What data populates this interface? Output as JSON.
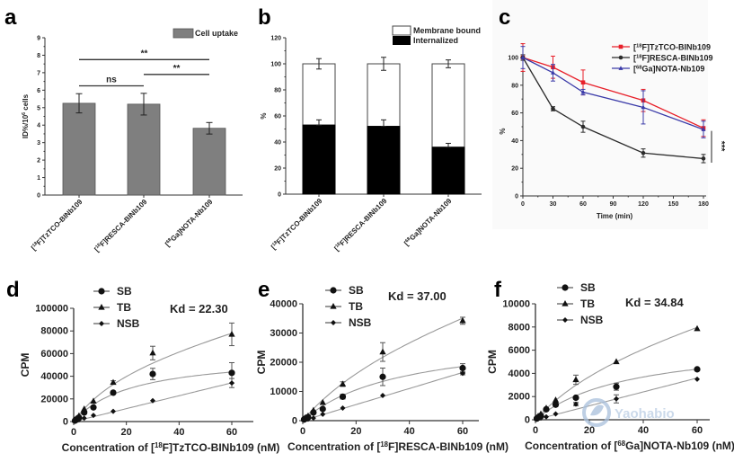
{
  "chart_data": [
    {
      "panel": "a",
      "type": "bar",
      "categories": [
        "[18F]TzTCO-BINb109",
        "[18F]RESCA-BINb109",
        "[68Ga]NOTA-Nb109"
      ],
      "category_labels": [
        {
          "sup": "18",
          "pre": "[",
          "post": "F]TzTCO-BINb109"
        },
        {
          "sup": "18",
          "pre": "[",
          "post": "F]RESCA-BINb109"
        },
        {
          "sup": "68",
          "pre": "[",
          "post": "Ga]NOTA-Nb109"
        }
      ],
      "series": [
        {
          "name": "Cell uptake",
          "values": [
            5.25,
            5.2,
            3.82
          ],
          "errors": [
            0.55,
            0.62,
            0.33
          ],
          "color": "#7f7f7f"
        }
      ],
      "ylabel": "ID%/10",
      "ylabel_sup": "6",
      "ylabel_post": " cells",
      "ylim": [
        0,
        9
      ],
      "yticks": [
        0,
        1,
        2,
        3,
        4,
        5,
        6,
        7,
        8,
        9
      ],
      "legend": "top-right",
      "significance": [
        {
          "from": 0,
          "to": 1,
          "label": "ns",
          "level": 6.25
        },
        {
          "from": 1,
          "to": 2,
          "label": "**",
          "level": 6.9
        },
        {
          "from": 0,
          "to": 2,
          "label": "**",
          "level": 7.75
        }
      ]
    },
    {
      "panel": "b",
      "type": "bar",
      "stacked": true,
      "categories": [
        "[18F]TzTCO-BINb109",
        "[18F]RESCA-BINb109",
        "[68Ga]NOTA-Nb109"
      ],
      "series": [
        {
          "name": "Internalized",
          "values": [
            53,
            52,
            36
          ],
          "errors": [
            4,
            5,
            3
          ],
          "color": "#000000"
        },
        {
          "name": "Membrane bound",
          "values": [
            47,
            48,
            64
          ],
          "errors": [
            4,
            5,
            3
          ],
          "color": "#ffffff"
        }
      ],
      "ylabel": "%",
      "ylim": [
        0,
        120
      ],
      "yticks": [
        0,
        20,
        40,
        60,
        80,
        100,
        120
      ],
      "legend": "top-right"
    },
    {
      "panel": "c",
      "type": "line",
      "x": [
        0,
        30,
        60,
        120,
        180
      ],
      "series": [
        {
          "name": "[18F]TzTCO-BINb109",
          "sup": "18",
          "post": "F]TzTCO-BINb109",
          "values": [
            100,
            93,
            82,
            69,
            49
          ],
          "errors": [
            10,
            8,
            9,
            8,
            6
          ],
          "color": "#e8202a",
          "marker": "square"
        },
        {
          "name": "[18F]RESCA-BINb109",
          "sup": "18",
          "post": "F]RESCA-BINb109",
          "values": [
            100,
            63,
            50,
            31,
            27
          ],
          "errors": [
            2,
            1.5,
            4,
            3,
            3
          ],
          "color": "#2b2b2b",
          "marker": "circle"
        },
        {
          "name": "[68Ga]NOTA-Nb109",
          "sup": "68",
          "post": "Ga]NOTA-Nb109",
          "values": [
            100,
            89,
            75,
            64,
            48
          ],
          "errors": [
            8,
            6,
            2,
            12,
            6
          ],
          "color": "#3a3aa8",
          "marker": "triangle"
        }
      ],
      "xlabel": "Time (min)",
      "ylabel": "%",
      "xlim": [
        0,
        180
      ],
      "ylim": [
        0,
        110
      ],
      "xticks": [
        0,
        30,
        60,
        90,
        120,
        150,
        180
      ],
      "yticks": [
        0,
        20,
        40,
        60,
        80,
        100
      ],
      "legend": "top-right",
      "annotation": "***"
    },
    {
      "panel": "d",
      "type": "scatter",
      "x": [
        0.5,
        1,
        2,
        4,
        7.5,
        15,
        30,
        60
      ],
      "series": [
        {
          "name": "SB",
          "marker": "circle",
          "values": [
            800,
            1800,
            3500,
            8000,
            12500,
            25500,
            42000,
            43000
          ],
          "errors": [
            0,
            0,
            0,
            0,
            0,
            1500,
            5000,
            9000
          ]
        },
        {
          "name": "TB",
          "marker": "triangle",
          "values": [
            1200,
            2500,
            5000,
            11000,
            18000,
            34500,
            60500,
            77000
          ],
          "errors": [
            0,
            0,
            0,
            0,
            0,
            1500,
            6000,
            10000
          ]
        },
        {
          "name": "NSB",
          "marker": "diamond",
          "values": [
            300,
            700,
            1500,
            3000,
            5500,
            9000,
            18500,
            34000
          ],
          "errors": [
            0,
            0,
            0,
            0,
            0,
            0,
            0,
            4000
          ]
        }
      ],
      "fit": {
        "SB_Bmax": 60000,
        "Kd": 22.3,
        "NSB_slope": 570
      },
      "kd_label": "Kd = 22.30",
      "xlabel_pre": "Concentration of [",
      "xlabel_sup": "18",
      "xlabel_post": "F]TzTCO-BINb109 (nM)",
      "ylabel": "CPM",
      "xlim": [
        0,
        65
      ],
      "ylim": [
        0,
        100000
      ],
      "xticks": [
        0,
        20,
        40,
        60
      ],
      "yticks": [
        0,
        20000,
        40000,
        60000,
        80000,
        100000
      ],
      "legend": "top-left"
    },
    {
      "panel": "e",
      "type": "scatter",
      "x": [
        0.5,
        1,
        2,
        4,
        7.5,
        15,
        30,
        60
      ],
      "series": [
        {
          "name": "SB",
          "marker": "circle",
          "values": [
            400,
            700,
            1200,
            2800,
            4000,
            8200,
            15000,
            18000
          ],
          "errors": [
            0,
            0,
            0,
            0,
            0,
            800,
            3000,
            1500
          ]
        },
        {
          "name": "TB",
          "marker": "triangle",
          "values": [
            600,
            1000,
            1600,
            3500,
            6200,
            12500,
            23500,
            34200
          ],
          "errors": [
            0,
            0,
            0,
            0,
            0,
            800,
            3200,
            1200
          ]
        },
        {
          "name": "NSB",
          "marker": "diamond",
          "values": [
            150,
            300,
            500,
            900,
            2200,
            4300,
            8600,
            16200
          ],
          "errors": [
            0,
            0,
            0,
            0,
            0,
            0,
            0,
            500
          ]
        }
      ],
      "fit": {
        "SB_Bmax": 30000,
        "Kd": 37.0,
        "NSB_slope": 275
      },
      "kd_label": "Kd = 37.00",
      "xlabel_pre": "Concentration of [",
      "xlabel_sup": "18",
      "xlabel_post": "F]RESCA-BINb109 (nM)",
      "ylabel": "CPM",
      "xlim": [
        0,
        65
      ],
      "ylim": [
        0,
        40000
      ],
      "xticks": [
        0,
        20,
        40,
        60
      ],
      "yticks": [
        0,
        10000,
        20000,
        30000,
        40000
      ],
      "legend": "top-left"
    },
    {
      "panel": "f",
      "type": "scatter",
      "x": [
        0.5,
        1,
        2,
        4,
        7.5,
        15,
        30,
        60
      ],
      "series": [
        {
          "name": "SB",
          "marker": "circle",
          "values": [
            100,
            200,
            350,
            900,
            1300,
            1900,
            2850,
            4350
          ],
          "errors": [
            0,
            0,
            0,
            0,
            150,
            100,
            300,
            0
          ]
        },
        {
          "name": "TB",
          "marker": "triangle",
          "values": [
            150,
            300,
            500,
            1000,
            1700,
            3450,
            5000,
            7850
          ],
          "errors": [
            0,
            0,
            0,
            0,
            0,
            400,
            0,
            0
          ]
        },
        {
          "name": "NSB",
          "marker": "diamond",
          "values": [
            50,
            100,
            150,
            250,
            500,
            1350,
            1800,
            3500
          ],
          "errors": [
            0,
            0,
            0,
            0,
            0,
            150,
            350,
            0
          ]
        }
      ],
      "fit": {
        "SB_Bmax": 6900,
        "Kd": 34.84,
        "NSB_slope": 60
      },
      "kd_label": "Kd = 34.84",
      "xlabel_pre": "Concentration of [",
      "xlabel_sup": "68",
      "xlabel_post": "Ga]NOTA-Nb109 (nM)",
      "ylabel": "CPM",
      "xlim": [
        0,
        65
      ],
      "ylim": [
        0,
        10000
      ],
      "xticks": [
        0,
        20,
        40,
        60
      ],
      "yticks": [
        0,
        2000,
        4000,
        6000,
        8000,
        10000
      ],
      "legend": "top-left"
    }
  ],
  "panel_letters": [
    "a",
    "b",
    "c",
    "d",
    "e",
    "f"
  ],
  "watermark": "Yaohabio"
}
